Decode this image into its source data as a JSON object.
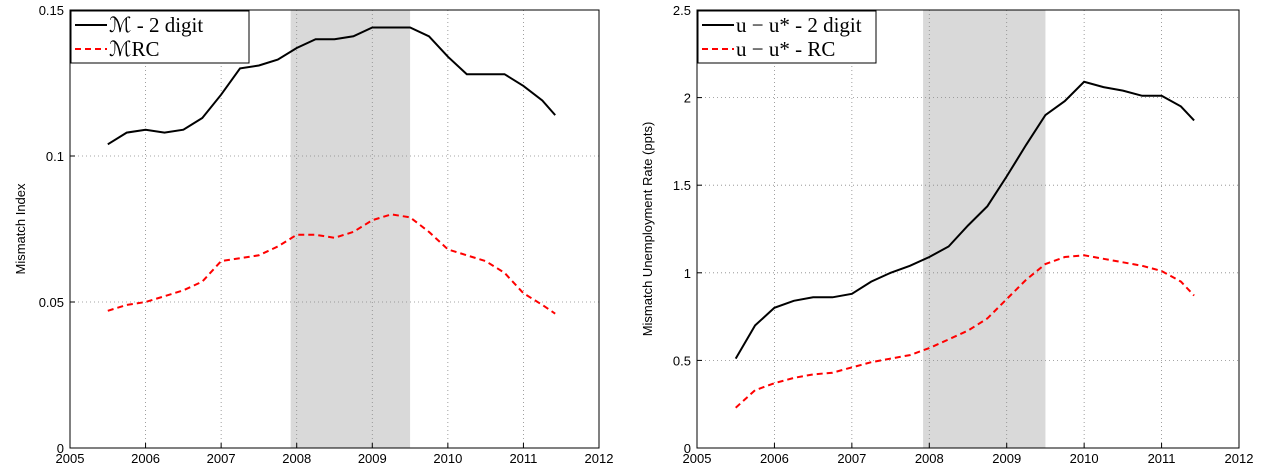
{
  "chart_data": [
    {
      "type": "line",
      "ylabel": "Mismatch Index",
      "x": [
        2005.5,
        2005.75,
        2006,
        2006.25,
        2006.5,
        2006.75,
        2007,
        2007.25,
        2007.5,
        2007.75,
        2008,
        2008.25,
        2008.5,
        2008.75,
        2009,
        2009.25,
        2009.5,
        2009.75,
        2010,
        2010.25,
        2010.5,
        2010.75,
        2011,
        2011.25,
        2011.42
      ],
      "series": [
        {
          "name": "ℳ - 2 digit",
          "color": "#000000",
          "dash": "solid",
          "values": [
            0.104,
            0.108,
            0.109,
            0.108,
            0.109,
            0.113,
            0.121,
            0.13,
            0.131,
            0.133,
            0.137,
            0.14,
            0.14,
            0.141,
            0.144,
            0.144,
            0.144,
            0.141,
            0.134,
            0.128,
            0.128,
            0.128,
            0.124,
            0.119,
            0.114
          ]
        },
        {
          "name": "ℳRC",
          "color": "#ff0000",
          "dash": "dashed",
          "values": [
            0.047,
            0.049,
            0.05,
            0.052,
            0.054,
            0.057,
            0.064,
            0.065,
            0.066,
            0.069,
            0.073,
            0.073,
            0.072,
            0.074,
            0.078,
            0.08,
            0.079,
            0.074,
            0.068,
            0.066,
            0.064,
            0.06,
            0.053,
            0.049,
            0.046
          ]
        }
      ],
      "shade": [
        2007.92,
        2009.5
      ],
      "xlim": [
        2005,
        2012
      ],
      "xticks": [
        2005,
        2006,
        2007,
        2008,
        2009,
        2010,
        2011,
        2012
      ],
      "ylim": [
        0,
        0.15
      ],
      "yticks": [
        0,
        0.05,
        0.1,
        0.15
      ],
      "grid": true,
      "legend": "upper-left"
    },
    {
      "type": "line",
      "ylabel": "Mismatch Unemployment Rate (ppts)",
      "x": [
        2005.5,
        2005.75,
        2006,
        2006.25,
        2006.5,
        2006.75,
        2007,
        2007.25,
        2007.5,
        2007.75,
        2008,
        2008.25,
        2008.5,
        2008.75,
        2009,
        2009.25,
        2009.5,
        2009.75,
        2010,
        2010.25,
        2010.5,
        2010.75,
        2011,
        2011.25,
        2011.42
      ],
      "series": [
        {
          "name": "u − u* - 2 digit",
          "color": "#000000",
          "dash": "solid",
          "values": [
            0.51,
            0.7,
            0.8,
            0.84,
            0.86,
            0.86,
            0.88,
            0.95,
            1.0,
            1.04,
            1.09,
            1.15,
            1.27,
            1.38,
            1.55,
            1.73,
            1.9,
            1.98,
            2.09,
            2.06,
            2.04,
            2.01,
            2.01,
            1.95,
            1.87
          ]
        },
        {
          "name": "u − u* - RC",
          "color": "#ff0000",
          "dash": "dashed",
          "values": [
            0.23,
            0.33,
            0.37,
            0.4,
            0.42,
            0.43,
            0.46,
            0.49,
            0.51,
            0.53,
            0.57,
            0.62,
            0.67,
            0.74,
            0.85,
            0.96,
            1.05,
            1.09,
            1.1,
            1.08,
            1.06,
            1.04,
            1.01,
            0.95,
            0.87
          ]
        }
      ],
      "shade": [
        2007.92,
        2009.5
      ],
      "xlim": [
        2005,
        2012
      ],
      "xticks": [
        2005,
        2006,
        2007,
        2008,
        2009,
        2010,
        2011,
        2012
      ],
      "ylim": [
        0,
        2.5
      ],
      "yticks": [
        0,
        0.5,
        1,
        1.5,
        2,
        2.5
      ],
      "grid": true,
      "legend": "upper-left"
    }
  ]
}
